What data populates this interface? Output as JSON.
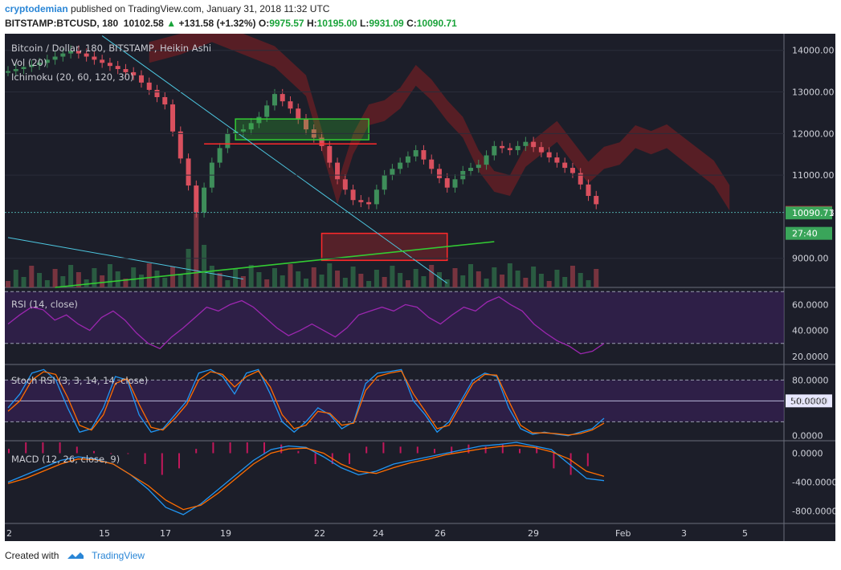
{
  "header": {
    "author": "cryptodemian",
    "published": "published on TradingView.com, January 31, 2018 11:32 UTC",
    "symbol": "BITSTAMP:BTCUSD, 180",
    "price": "10102.58",
    "change": "+131.58 (+1.32%)",
    "o_label": "O:",
    "o": "9975.57",
    "h_label": "H:",
    "h": "10195.00",
    "l_label": "L:",
    "l": "9931.09",
    "c_label": "C:",
    "c": "10090.71"
  },
  "footer": {
    "created": "Created with",
    "brand": "TradingView"
  },
  "colors": {
    "bg": "#1c1e29",
    "up": "#3e8e5a",
    "down": "#d9505e",
    "cloud": "#6b1f24",
    "rsi": "#9c27b0",
    "blue": "#2196f3",
    "orange": "#ff6d00",
    "lime": "#33cc33",
    "cyan": "#4dc7e0",
    "red": "#ff2a2a"
  },
  "chart_data": [
    {
      "type": "candlestick",
      "title": "Bitcoin / Dollar, 180, BITSTAMP, Heikin Ashi",
      "indicators": [
        "Vol (20)",
        "Ichimoku (20, 60, 120, 30)"
      ],
      "x_ticks": [
        "2",
        "15",
        "17",
        "19",
        "22",
        "24",
        "26",
        "29",
        "Feb",
        "3",
        "5"
      ],
      "y_ticks": [
        "14000.00",
        "13000.00",
        "12000.00",
        "11000.00",
        "9000.00"
      ],
      "ylim": [
        8300,
        14400
      ],
      "price_labels": [
        {
          "text": "10102.58",
          "value": 10102.58,
          "color": "#e0253a"
        },
        {
          "text": "10090.71",
          "value": 10090.71,
          "color": "#3aa55a"
        },
        {
          "text": "27:40",
          "value": 9600,
          "color": "#3aa55a"
        }
      ],
      "close_path": [
        [
          0,
          13500
        ],
        [
          4,
          13700
        ],
        [
          8,
          14000
        ],
        [
          12,
          13700
        ],
        [
          16,
          13400
        ],
        [
          20,
          12700
        ],
        [
          22,
          11400
        ],
        [
          24,
          10100
        ],
        [
          26,
          11300
        ],
        [
          28,
          12000
        ],
        [
          30,
          12100
        ],
        [
          32,
          12400
        ],
        [
          34,
          12950
        ],
        [
          36,
          12600
        ],
        [
          38,
          12100
        ],
        [
          40,
          11700
        ],
        [
          42,
          10900
        ],
        [
          44,
          10400
        ],
        [
          46,
          10300
        ],
        [
          48,
          11000
        ],
        [
          50,
          11300
        ],
        [
          52,
          11600
        ],
        [
          54,
          11150
        ],
        [
          56,
          10700
        ],
        [
          58,
          11100
        ],
        [
          60,
          11250
        ],
        [
          62,
          11700
        ],
        [
          64,
          11600
        ],
        [
          66,
          11800
        ],
        [
          68,
          11550
        ],
        [
          70,
          11300
        ],
        [
          72,
          11050
        ],
        [
          74,
          10500
        ],
        [
          76,
          10100
        ]
      ],
      "annotations": [
        {
          "type": "rect",
          "label": "green-resistance-box",
          "x": [
            29,
            46
          ],
          "y": [
            11850,
            12350
          ],
          "color": "#33cc33"
        },
        {
          "type": "rect",
          "label": "red-support-box",
          "x": [
            40,
            56
          ],
          "y": [
            8950,
            9600
          ],
          "color": "#ff2a2a"
        },
        {
          "type": "hline",
          "label": "red-line",
          "x": [
            25,
            47
          ],
          "y": 11750
        },
        {
          "type": "trendline",
          "label": "cyan-upper",
          "from": [
            12,
            14350
          ],
          "to": [
            56,
            8400
          ]
        },
        {
          "type": "trendline",
          "label": "cyan-lower",
          "from": [
            0,
            9500
          ],
          "to": [
            30,
            8500
          ]
        },
        {
          "type": "trendline",
          "label": "green-support",
          "from": [
            6,
            8300
          ],
          "to": [
            62,
            9400
          ]
        }
      ]
    },
    {
      "type": "line",
      "title": "RSI (14, close)",
      "y_ticks": [
        "60.0000",
        "40.0000",
        "20.0000"
      ],
      "ylim": [
        15,
        72
      ],
      "band": [
        30,
        70
      ],
      "values": [
        45,
        52,
        58,
        56,
        48,
        52,
        45,
        40,
        50,
        55,
        48,
        38,
        30,
        26,
        35,
        42,
        50,
        58,
        55,
        60,
        63,
        58,
        50,
        42,
        36,
        40,
        45,
        40,
        35,
        42,
        52,
        55,
        58,
        55,
        60,
        58,
        50,
        45,
        52,
        58,
        55,
        62,
        66,
        60,
        55,
        45,
        38,
        32,
        28,
        22,
        24,
        30
      ]
    },
    {
      "type": "line",
      "title": "Stoch RSI (3, 3, 14, 14, close)",
      "y_ticks": [
        "80.0000",
        "50.0000",
        "0.0000"
      ],
      "ylim": [
        -5,
        100
      ],
      "band": [
        20,
        80
      ],
      "reference_line": {
        "text": "50.0000",
        "value": 50
      },
      "series": [
        {
          "name": "K",
          "color": "#2196f3",
          "values": [
            40,
            60,
            90,
            95,
            80,
            40,
            5,
            10,
            40,
            85,
            80,
            30,
            5,
            10,
            30,
            50,
            90,
            95,
            85,
            60,
            90,
            95,
            60,
            20,
            5,
            20,
            40,
            30,
            10,
            20,
            75,
            90,
            92,
            95,
            50,
            30,
            5,
            20,
            50,
            80,
            90,
            85,
            40,
            10,
            2,
            5,
            2,
            0,
            5,
            10,
            25
          ]
        },
        {
          "name": "D",
          "color": "#ff6d00",
          "values": [
            35,
            50,
            80,
            92,
            88,
            55,
            15,
            8,
            30,
            75,
            82,
            45,
            12,
            8,
            25,
            45,
            80,
            92,
            88,
            70,
            85,
            93,
            70,
            30,
            10,
            15,
            35,
            32,
            15,
            18,
            65,
            85,
            90,
            93,
            60,
            35,
            10,
            15,
            45,
            75,
            88,
            87,
            50,
            15,
            4,
            4,
            3,
            1,
            3,
            8,
            18
          ]
        }
      ]
    },
    {
      "type": "line",
      "title": "MACD (12, 26, close, 9)",
      "y_ticks": [
        "0.0000",
        "-400.0000",
        "-800.0000"
      ],
      "ylim": [
        -950,
        150
      ],
      "series": [
        {
          "name": "MACD",
          "color": "#2196f3",
          "values": [
            -400,
            -300,
            -200,
            -100,
            -50,
            -80,
            -150,
            -300,
            -500,
            -750,
            -850,
            -700,
            -500,
            -300,
            -100,
            50,
            100,
            80,
            -50,
            -200,
            -300,
            -250,
            -150,
            -100,
            -50,
            0,
            50,
            100,
            120,
            150,
            100,
            50,
            -150,
            -350,
            -380
          ]
        },
        {
          "name": "Signal",
          "color": "#ff6d00",
          "values": [
            -420,
            -350,
            -250,
            -150,
            -80,
            -90,
            -150,
            -300,
            -450,
            -650,
            -780,
            -720,
            -550,
            -350,
            -150,
            0,
            60,
            70,
            0,
            -150,
            -250,
            -280,
            -200,
            -130,
            -80,
            -20,
            20,
            60,
            90,
            110,
            80,
            20,
            -80,
            -250,
            -320
          ]
        }
      ]
    }
  ]
}
